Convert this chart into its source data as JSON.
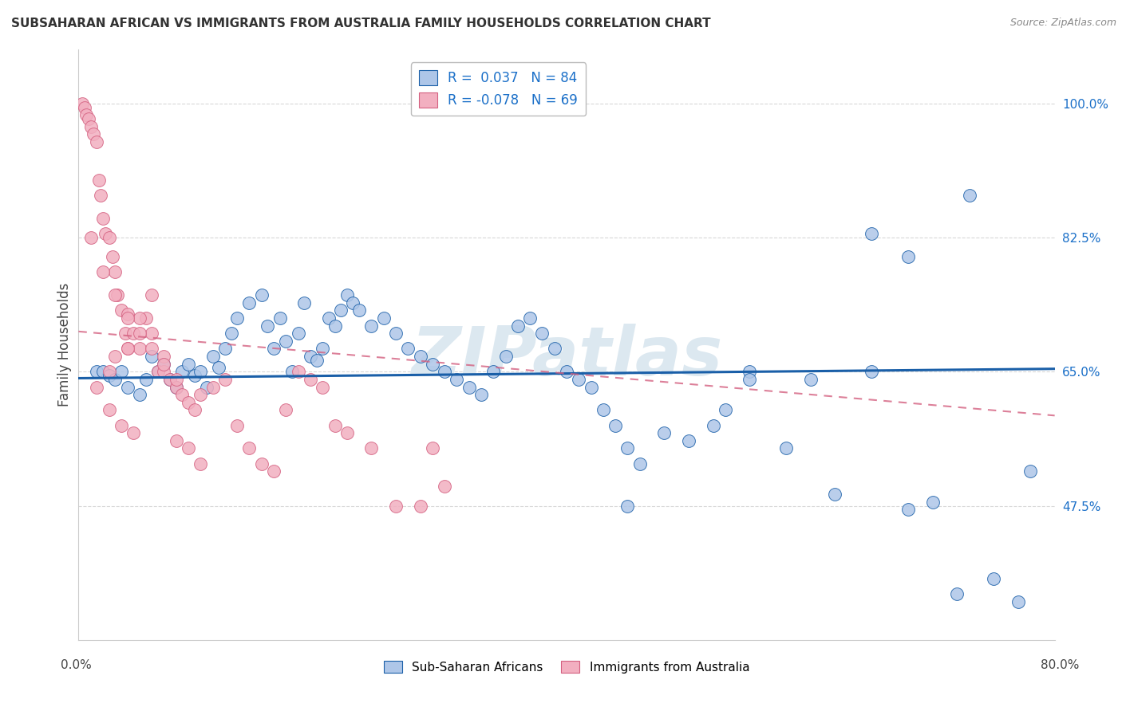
{
  "title": "SUBSAHARAN AFRICAN VS IMMIGRANTS FROM AUSTRALIA FAMILY HOUSEHOLDS CORRELATION CHART",
  "source": "Source: ZipAtlas.com",
  "ylabel": "Family Households",
  "y_ticks": [
    47.5,
    65.0,
    82.5,
    100.0
  ],
  "y_tick_labels": [
    "47.5%",
    "65.0%",
    "82.5%",
    "100.0%"
  ],
  "x_min": 0.0,
  "x_max": 80.0,
  "y_min": 30.0,
  "y_max": 107.0,
  "color_blue": "#aec6e8",
  "color_pink": "#f2afc0",
  "line_color_blue": "#1a5fa8",
  "line_color_pink": "#d46080",
  "blue_r": 0.037,
  "pink_r": -0.078,
  "blue_x": [
    1.5,
    2.0,
    2.5,
    3.0,
    3.5,
    4.0,
    5.0,
    5.5,
    6.0,
    6.5,
    7.0,
    7.5,
    8.0,
    8.5,
    9.0,
    9.5,
    10.0,
    10.5,
    11.0,
    11.5,
    12.0,
    12.5,
    13.0,
    14.0,
    15.0,
    15.5,
    16.0,
    16.5,
    17.0,
    17.5,
    18.0,
    18.5,
    19.0,
    19.5,
    20.0,
    20.5,
    21.0,
    21.5,
    22.0,
    22.5,
    23.0,
    24.0,
    25.0,
    26.0,
    27.0,
    28.0,
    29.0,
    30.0,
    31.0,
    32.0,
    33.0,
    34.0,
    35.0,
    36.0,
    37.0,
    38.0,
    39.0,
    40.0,
    41.0,
    42.0,
    43.0,
    44.0,
    45.0,
    46.0,
    48.0,
    50.0,
    52.0,
    53.0,
    55.0,
    55.0,
    58.0,
    60.0,
    62.0,
    65.0,
    65.0,
    68.0,
    70.0,
    72.0,
    73.0,
    75.0,
    77.0,
    78.0,
    68.0,
    45.0
  ],
  "blue_y": [
    65.0,
    65.0,
    64.5,
    64.0,
    65.0,
    63.0,
    62.0,
    64.0,
    67.0,
    65.0,
    66.0,
    64.0,
    63.0,
    65.0,
    66.0,
    64.5,
    65.0,
    63.0,
    67.0,
    65.5,
    68.0,
    70.0,
    72.0,
    74.0,
    75.0,
    71.0,
    68.0,
    72.0,
    69.0,
    65.0,
    70.0,
    74.0,
    67.0,
    66.5,
    68.0,
    72.0,
    71.0,
    73.0,
    75.0,
    74.0,
    73.0,
    71.0,
    72.0,
    70.0,
    68.0,
    67.0,
    66.0,
    65.0,
    64.0,
    63.0,
    62.0,
    65.0,
    67.0,
    71.0,
    72.0,
    70.0,
    68.0,
    65.0,
    64.0,
    63.0,
    60.0,
    58.0,
    55.0,
    53.0,
    57.0,
    56.0,
    58.0,
    60.0,
    65.0,
    64.0,
    55.0,
    64.0,
    49.0,
    65.0,
    83.0,
    80.0,
    48.0,
    36.0,
    88.0,
    38.0,
    35.0,
    52.0,
    47.0,
    47.5
  ],
  "pink_x": [
    0.3,
    0.5,
    0.6,
    0.8,
    1.0,
    1.2,
    1.5,
    1.7,
    1.8,
    2.0,
    2.2,
    2.5,
    2.8,
    3.0,
    3.2,
    3.5,
    3.8,
    4.0,
    4.0,
    4.5,
    5.0,
    5.5,
    6.0,
    6.5,
    7.0,
    7.5,
    8.0,
    8.5,
    9.0,
    9.5,
    10.0,
    11.0,
    12.0,
    13.0,
    14.0,
    15.0,
    16.0,
    17.0,
    18.0,
    19.0,
    20.0,
    21.0,
    22.0,
    24.0,
    26.0,
    28.0,
    29.0,
    30.0,
    2.5,
    3.0,
    4.0,
    5.0,
    6.0,
    7.0,
    1.5,
    2.5,
    3.5,
    4.5,
    8.0,
    9.0,
    10.0,
    1.0,
    2.0,
    3.0,
    4.0,
    5.0,
    6.0,
    7.0,
    8.0
  ],
  "pink_y": [
    100.0,
    99.5,
    98.5,
    98.0,
    97.0,
    96.0,
    95.0,
    90.0,
    88.0,
    85.0,
    83.0,
    82.5,
    80.0,
    78.0,
    75.0,
    73.0,
    70.0,
    68.0,
    72.5,
    70.0,
    68.0,
    72.0,
    75.0,
    65.0,
    65.0,
    64.0,
    63.0,
    62.0,
    61.0,
    60.0,
    62.0,
    63.0,
    64.0,
    58.0,
    55.0,
    53.0,
    52.0,
    60.0,
    65.0,
    64.0,
    63.0,
    58.0,
    57.0,
    55.0,
    47.5,
    47.5,
    55.0,
    50.0,
    65.0,
    67.0,
    68.0,
    72.0,
    70.0,
    67.0,
    63.0,
    60.0,
    58.0,
    57.0,
    56.0,
    55.0,
    53.0,
    82.5,
    78.0,
    75.0,
    72.0,
    70.0,
    68.0,
    66.0,
    64.0
  ],
  "background_color": "#ffffff",
  "grid_color": "#d8d8d8",
  "watermark_text": "ZIPatlas",
  "watermark_color": "#dce8f0"
}
